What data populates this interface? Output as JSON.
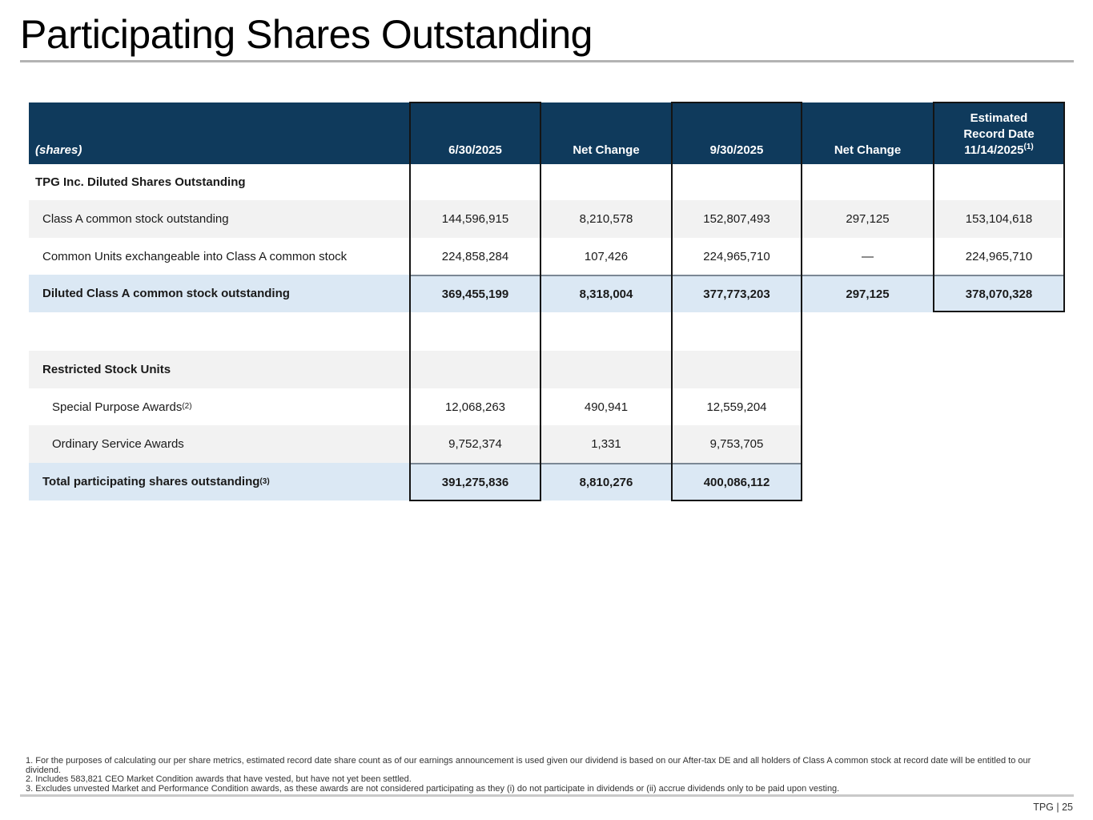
{
  "page": {
    "title": "Participating Shares Outstanding",
    "footer_page": "TPG | 25"
  },
  "colors": {
    "header_bg": "#0f3a5c",
    "alt_row_bg": "#f2f2f2",
    "highlight_row_bg": "#dbe8f4",
    "emphasis_box_border": "#141414",
    "total_rule": "#7b8794",
    "title_rule": "#b3b3b3"
  },
  "table": {
    "header": {
      "col1": "(shares)",
      "col2": "6/30/2025",
      "col3": "Net Change",
      "col4": "9/30/2025",
      "col5": "Net Change",
      "col6_line1": "Estimated",
      "col6_line2": "Record Date",
      "col6_line3": "11/14/2025",
      "col6_sup": "(1)"
    },
    "rows": [
      {
        "label": "TPG Inc. Diluted Shares Outstanding"
      },
      {
        "label": "Class A common stock outstanding",
        "v1": "144,596,915",
        "v2": "8,210,578",
        "v3": "152,807,493",
        "v4": "297,125",
        "v5": "153,104,618"
      },
      {
        "label": "Common Units exchangeable into Class A common stock",
        "v1": "224,858,284",
        "v2": "107,426",
        "v3": "224,965,710",
        "v4": "—",
        "v5": "224,965,710"
      },
      {
        "label": "Diluted Class A common stock outstanding",
        "v1": "369,455,199",
        "v2": "8,318,004",
        "v3": "377,773,203",
        "v4": "297,125",
        "v5": "378,070,328"
      },
      {
        "label": "Restricted Stock Units"
      },
      {
        "label": "Special Purpose Awards",
        "sup": "(2)",
        "v1": "12,068,263",
        "v2": "490,941",
        "v3": "12,559,204"
      },
      {
        "label": "Ordinary Service Awards",
        "v1": "9,752,374",
        "v2": "1,331",
        "v3": "9,753,705"
      },
      {
        "label": "Total participating shares outstanding",
        "sup": "(3)",
        "v1": "391,275,836",
        "v2": "8,810,276",
        "v3": "400,086,112"
      }
    ]
  },
  "footnotes": [
    "1. For the purposes of calculating our per share metrics, estimated record date share count as of our earnings announcement is used given our dividend is based on our After-tax DE and all holders of Class A common stock at record date will be entitled to our dividend.",
    "2. Includes 583,821 CEO Market Condition awards that have vested, but have not yet been settled.",
    "3. Excludes unvested Market and Performance Condition awards, as these awards are not considered participating as they (i) do not participate in dividends or (ii) accrue dividends only to be paid upon vesting."
  ]
}
